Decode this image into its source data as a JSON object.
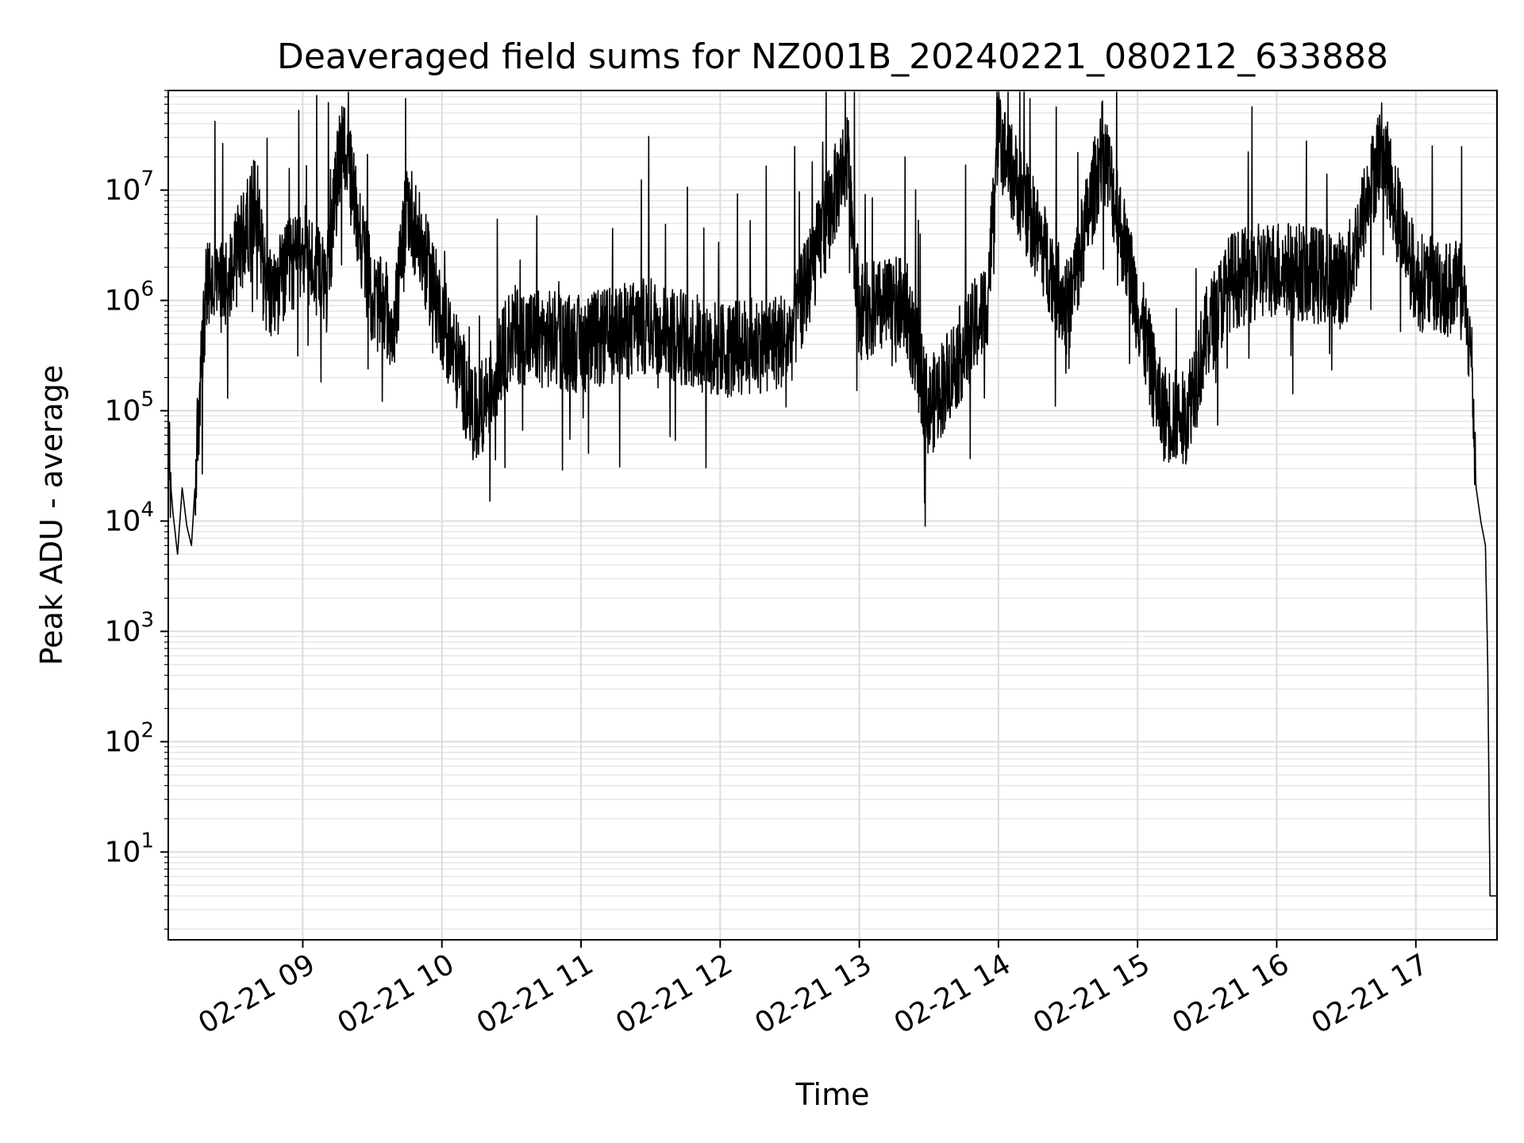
{
  "chart_data": {
    "type": "line",
    "title": "Deaveraged field sums for NZ001B_20240221_080212_633888",
    "xlabel": "Time",
    "ylabel": "Peak ADU - average",
    "x_range": [
      "2024-02-21 08:02",
      "2024-02-21 17:35"
    ],
    "y_scale": "log",
    "ylim": [
      1.6,
      80000000
    ],
    "grid": true,
    "legend": "none",
    "line_color": "#000000",
    "x_tick_labels": [
      "02-21 09",
      "02-21 10",
      "02-21 11",
      "02-21 12",
      "02-21 13",
      "02-21 14",
      "02-21 15",
      "02-21 16",
      "02-21 17"
    ],
    "x_tick_times": [
      "2024-02-21 09:00",
      "2024-02-21 10:00",
      "2024-02-21 11:00",
      "2024-02-21 12:00",
      "2024-02-21 13:00",
      "2024-02-21 14:00",
      "2024-02-21 15:00",
      "2024-02-21 16:00",
      "2024-02-21 17:00"
    ],
    "y_ticks": [
      {
        "value": 10,
        "base": "10",
        "exp": "1"
      },
      {
        "value": 100,
        "base": "10",
        "exp": "2"
      },
      {
        "value": 1000,
        "base": "10",
        "exp": "3"
      },
      {
        "value": 10000,
        "base": "10",
        "exp": "4"
      },
      {
        "value": 100000,
        "base": "10",
        "exp": "5"
      },
      {
        "value": 1000000,
        "base": "10",
        "exp": "6"
      },
      {
        "value": 10000000,
        "base": "10",
        "exp": "7"
      }
    ],
    "series": [
      {
        "x": [
          "2024-02-21 08:02",
          "2024-02-21 08:04",
          "2024-02-21 08:06",
          "2024-02-21 08:08",
          "2024-02-21 08:10",
          "2024-02-21 08:12",
          "2024-02-21 08:14",
          "2024-02-21 08:16",
          "2024-02-21 08:18",
          "2024-02-21 08:20",
          "2024-02-21 08:22",
          "2024-02-21 08:30",
          "2024-02-21 08:40",
          "2024-02-21 08:45",
          "2024-02-21 09:00",
          "2024-02-21 09:10",
          "2024-02-21 09:17",
          "2024-02-21 09:30",
          "2024-02-21 09:40",
          "2024-02-21 09:45",
          "2024-02-21 10:00",
          "2024-02-21 10:15",
          "2024-02-21 10:30",
          "2024-02-21 11:00",
          "2024-02-21 11:30",
          "2024-02-21 12:00",
          "2024-02-21 12:30",
          "2024-02-21 12:55",
          "2024-02-21 13:00",
          "2024-02-21 13:20",
          "2024-02-21 13:30",
          "2024-02-21 13:55",
          "2024-02-21 14:00",
          "2024-02-21 14:30",
          "2024-02-21 14:45",
          "2024-02-21 15:00",
          "2024-02-21 15:10",
          "2024-02-21 15:20",
          "2024-02-21 15:30",
          "2024-02-21 15:40",
          "2024-02-21 16:00",
          "2024-02-21 16:30",
          "2024-02-21 16:45",
          "2024-02-21 17:00",
          "2024-02-21 17:20",
          "2024-02-21 17:24",
          "2024-02-21 17:26",
          "2024-02-21 17:28",
          "2024-02-21 17:30",
          "2024-02-21 17:31",
          "2024-02-21 17:32",
          "2024-02-21 17:33",
          "2024-02-21 17:35"
        ],
        "y": [
          40000,
          12000,
          5000,
          20000,
          9000,
          6000,
          30000,
          200000,
          1000000,
          1500000,
          1200000,
          2000000,
          8000000,
          1000000,
          3000000,
          1200000,
          35000000,
          1000000,
          700000,
          8000000,
          700000,
          80000,
          500000,
          400000,
          600000,
          350000,
          450000,
          22000000,
          800000,
          900000,
          100000,
          900000,
          30000000,
          800000,
          25000000,
          900000,
          100000,
          80000,
          500000,
          1500000,
          2000000,
          1500000,
          25000000,
          1500000,
          1200000,
          300000,
          20000,
          10000,
          6000,
          500,
          4,
          4,
          4
        ]
      }
    ]
  }
}
